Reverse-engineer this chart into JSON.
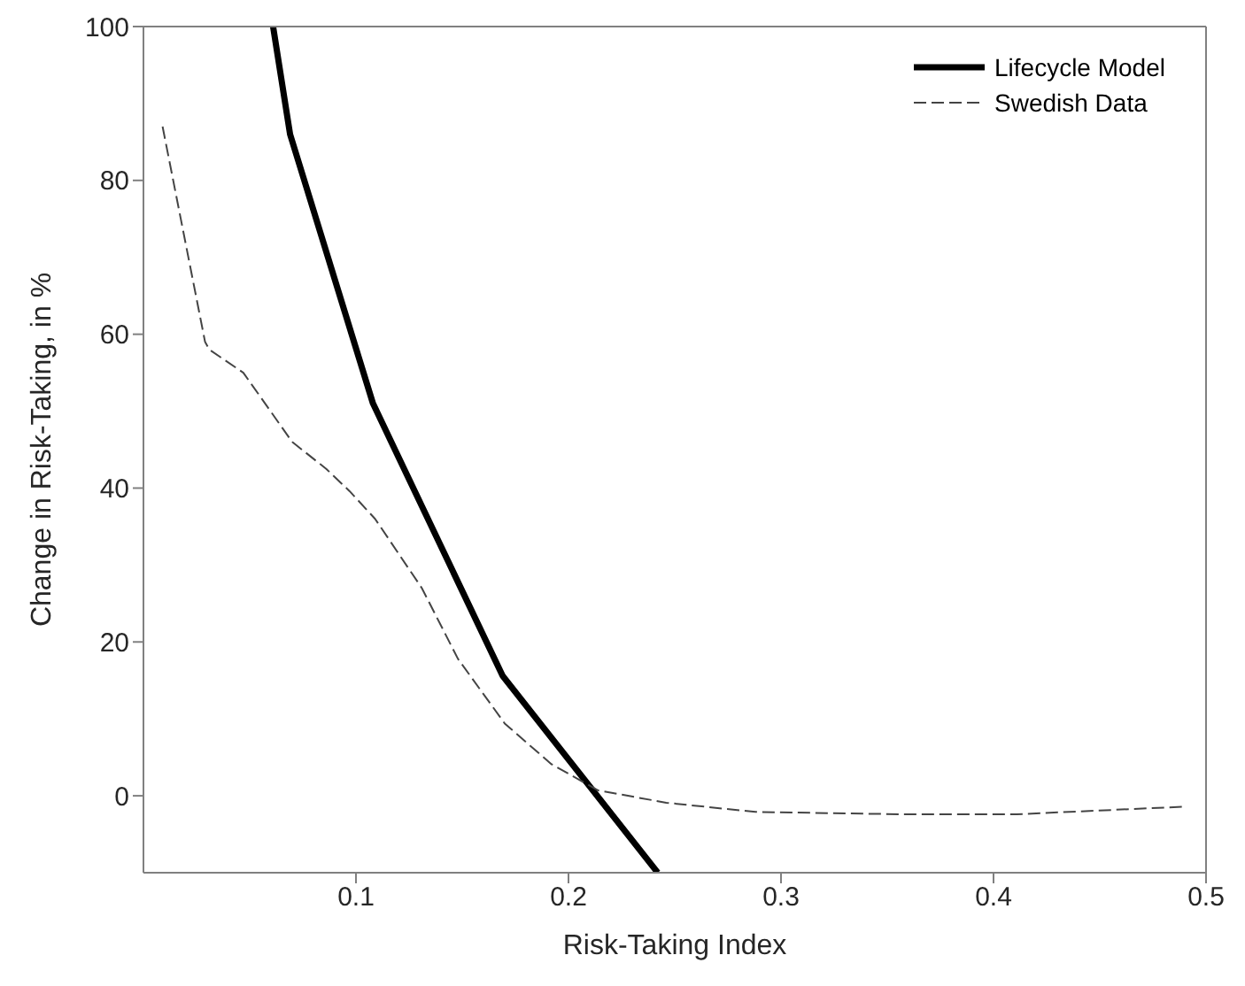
{
  "chart_data": {
    "type": "line",
    "xlabel": "Risk-Taking Index",
    "ylabel": "Change in Risk-Taking, in %",
    "xlim": [
      0,
      0.5
    ],
    "xticks": [
      0.1,
      0.2,
      0.3,
      0.4,
      0.5
    ],
    "ylim": [
      -10,
      100
    ],
    "yticks": [
      0,
      20,
      40,
      60,
      80,
      100
    ],
    "grid": false,
    "legend": "top right",
    "marker": "none",
    "series": [
      {
        "name": "Lifecycle Model",
        "color": "#000000",
        "line_style": "solid",
        "x": [
          0.061,
          0.069,
          0.108,
          0.169,
          0.242
        ],
        "values": [
          100,
          86,
          51,
          15.6,
          -10
        ]
      },
      {
        "name": "Swedish Data",
        "color": "#444444",
        "line_style": "dashed",
        "x": [
          0.009,
          0.029,
          0.031,
          0.047,
          0.07,
          0.086,
          0.097,
          0.109,
          0.131,
          0.148,
          0.17,
          0.192,
          0.214,
          0.246,
          0.288,
          0.356,
          0.411,
          0.491
        ],
        "values": [
          87,
          59,
          58,
          55,
          46,
          42.5,
          39.6,
          36,
          27,
          17.8,
          9.4,
          4.1,
          0.7,
          -0.9,
          -2.1,
          -2.4,
          -2.4,
          -1.4
        ]
      }
    ]
  }
}
